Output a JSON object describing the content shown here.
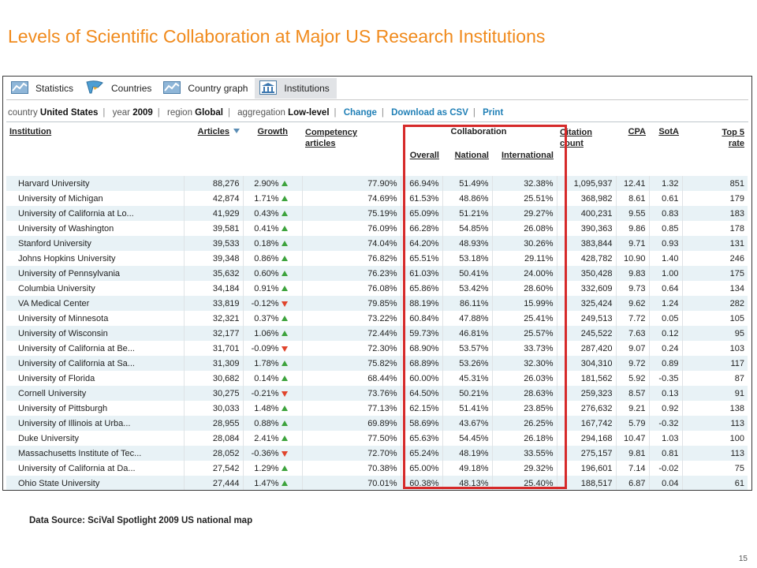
{
  "slide": {
    "title": "Levels of Scientific Collaboration at Major US Research Institutions",
    "source": "Data Source: SciVal Spotlight 2009 US national map",
    "page_number": "15"
  },
  "tabs": [
    {
      "label": "Statistics",
      "icon": "chart-icon",
      "active": false
    },
    {
      "label": "Countries",
      "icon": "flag-icon",
      "active": false
    },
    {
      "label": "Country graph",
      "icon": "chart-icon",
      "active": false
    },
    {
      "label": "Institutions",
      "icon": "institution-icon",
      "active": true
    }
  ],
  "filter": {
    "country_label": "country",
    "country_value": "United States",
    "year_label": "year",
    "year_value": "2009",
    "region_label": "region",
    "region_value": "Global",
    "aggregation_label": "aggregation",
    "aggregation_value": "Low-level",
    "change_link": "Change",
    "csv_link": "Download as CSV",
    "print_link": "Print"
  },
  "columns": {
    "institution": "Institution",
    "articles": "Articles",
    "growth": "Growth",
    "competency_1": "Competency",
    "competency_2": "articles",
    "collaboration": "Collaboration",
    "overall": "Overall",
    "national": "National",
    "international": "International",
    "citation_1": "Citation",
    "citation_2": "count",
    "cpa": "CPA",
    "sota": "SotA",
    "top5_1": "Top 5",
    "top5_2": "rate"
  },
  "colors": {
    "title": "#f08a1c",
    "highlight_box": "#d62a2a",
    "link": "#1f7fb6",
    "growth_up": "#3da33d",
    "growth_down": "#e0442c"
  },
  "rows": [
    {
      "institution": "Harvard University",
      "articles": "88,276",
      "growth": "2.90%",
      "trend": "up",
      "competency": "77.90%",
      "overall": "66.94%",
      "national": "51.49%",
      "international": "32.38%",
      "citations": "1,095,937",
      "cpa": "12.41",
      "sota": "1.32",
      "top5": "851"
    },
    {
      "institution": "University of Michigan",
      "articles": "42,874",
      "growth": "1.71%",
      "trend": "up",
      "competency": "74.69%",
      "overall": "61.53%",
      "national": "48.86%",
      "international": "25.51%",
      "citations": "368,982",
      "cpa": "8.61",
      "sota": "0.61",
      "top5": "179"
    },
    {
      "institution": "University of California at Lo...",
      "articles": "41,929",
      "growth": "0.43%",
      "trend": "up",
      "competency": "75.19%",
      "overall": "65.09%",
      "national": "51.21%",
      "international": "29.27%",
      "citations": "400,231",
      "cpa": "9.55",
      "sota": "0.83",
      "top5": "183"
    },
    {
      "institution": "University of Washington",
      "articles": "39,581",
      "growth": "0.41%",
      "trend": "up",
      "competency": "76.09%",
      "overall": "66.28%",
      "national": "54.85%",
      "international": "26.08%",
      "citations": "390,363",
      "cpa": "9.86",
      "sota": "0.85",
      "top5": "178"
    },
    {
      "institution": "Stanford University",
      "articles": "39,533",
      "growth": "0.18%",
      "trend": "up",
      "competency": "74.04%",
      "overall": "64.20%",
      "national": "48.93%",
      "international": "30.26%",
      "citations": "383,844",
      "cpa": "9.71",
      "sota": "0.93",
      "top5": "131"
    },
    {
      "institution": "Johns Hopkins University",
      "articles": "39,348",
      "growth": "0.86%",
      "trend": "up",
      "competency": "76.82%",
      "overall": "65.51%",
      "national": "53.18%",
      "international": "29.11%",
      "citations": "428,782",
      "cpa": "10.90",
      "sota": "1.40",
      "top5": "246"
    },
    {
      "institution": "University of Pennsylvania",
      "articles": "35,632",
      "growth": "0.60%",
      "trend": "up",
      "competency": "76.23%",
      "overall": "61.03%",
      "national": "50.41%",
      "international": "24.00%",
      "citations": "350,428",
      "cpa": "9.83",
      "sota": "1.00",
      "top5": "175"
    },
    {
      "institution": "Columbia University",
      "articles": "34,184",
      "growth": "0.91%",
      "trend": "up",
      "competency": "76.08%",
      "overall": "65.86%",
      "national": "53.42%",
      "international": "28.60%",
      "citations": "332,609",
      "cpa": "9.73",
      "sota": "0.64",
      "top5": "134"
    },
    {
      "institution": "VA Medical Center",
      "articles": "33,819",
      "growth": "-0.12%",
      "trend": "down",
      "competency": "79.85%",
      "overall": "88.19%",
      "national": "86.11%",
      "international": "15.99%",
      "citations": "325,424",
      "cpa": "9.62",
      "sota": "1.24",
      "top5": "282"
    },
    {
      "institution": "University of Minnesota",
      "articles": "32,321",
      "growth": "0.37%",
      "trend": "up",
      "competency": "73.22%",
      "overall": "60.84%",
      "national": "47.88%",
      "international": "25.41%",
      "citations": "249,513",
      "cpa": "7.72",
      "sota": "0.05",
      "top5": "105"
    },
    {
      "institution": "University of Wisconsin",
      "articles": "32,177",
      "growth": "1.06%",
      "trend": "up",
      "competency": "72.44%",
      "overall": "59.73%",
      "national": "46.81%",
      "international": "25.57%",
      "citations": "245,522",
      "cpa": "7.63",
      "sota": "0.12",
      "top5": "95"
    },
    {
      "institution": "University of California at Be...",
      "articles": "31,701",
      "growth": "-0.09%",
      "trend": "down",
      "competency": "72.30%",
      "overall": "68.90%",
      "national": "53.57%",
      "international": "33.73%",
      "citations": "287,420",
      "cpa": "9.07",
      "sota": "0.24",
      "top5": "103"
    },
    {
      "institution": "University of California at Sa...",
      "articles": "31,309",
      "growth": "1.78%",
      "trend": "up",
      "competency": "75.82%",
      "overall": "68.89%",
      "national": "53.26%",
      "international": "32.30%",
      "citations": "304,310",
      "cpa": "9.72",
      "sota": "0.89",
      "top5": "117"
    },
    {
      "institution": "University of Florida",
      "articles": "30,682",
      "growth": "0.14%",
      "trend": "up",
      "competency": "68.44%",
      "overall": "60.00%",
      "national": "45.31%",
      "international": "26.03%",
      "citations": "181,562",
      "cpa": "5.92",
      "sota": "-0.35",
      "top5": "87"
    },
    {
      "institution": "Cornell University",
      "articles": "30,275",
      "growth": "-0.21%",
      "trend": "down",
      "competency": "73.76%",
      "overall": "64.50%",
      "national": "50.21%",
      "international": "28.63%",
      "citations": "259,323",
      "cpa": "8.57",
      "sota": "0.13",
      "top5": "91"
    },
    {
      "institution": "University of Pittsburgh",
      "articles": "30,033",
      "growth": "1.48%",
      "trend": "up",
      "competency": "77.13%",
      "overall": "62.15%",
      "national": "51.41%",
      "international": "23.85%",
      "citations": "276,632",
      "cpa": "9.21",
      "sota": "0.92",
      "top5": "138"
    },
    {
      "institution": "University of Illinois at Urba...",
      "articles": "28,955",
      "growth": "0.88%",
      "trend": "up",
      "competency": "69.89%",
      "overall": "58.69%",
      "national": "43.67%",
      "international": "26.25%",
      "citations": "167,742",
      "cpa": "5.79",
      "sota": "-0.32",
      "top5": "113"
    },
    {
      "institution": "Duke University",
      "articles": "28,084",
      "growth": "2.41%",
      "trend": "up",
      "competency": "77.50%",
      "overall": "65.63%",
      "national": "54.45%",
      "international": "26.18%",
      "citations": "294,168",
      "cpa": "10.47",
      "sota": "1.03",
      "top5": "100"
    },
    {
      "institution": "Massachusetts Institute of Tec...",
      "articles": "28,052",
      "growth": "-0.36%",
      "trend": "down",
      "competency": "72.70%",
      "overall": "65.24%",
      "national": "48.19%",
      "international": "33.55%",
      "citations": "275,157",
      "cpa": "9.81",
      "sota": "0.81",
      "top5": "113"
    },
    {
      "institution": "University of California at Da...",
      "articles": "27,542",
      "growth": "1.29%",
      "trend": "up",
      "competency": "70.38%",
      "overall": "65.00%",
      "national": "49.18%",
      "international": "29.32%",
      "citations": "196,601",
      "cpa": "7.14",
      "sota": "-0.02",
      "top5": "75"
    },
    {
      "institution": "Ohio State University",
      "articles": "27,444",
      "growth": "1.47%",
      "trend": "up",
      "competency": "70.01%",
      "overall": "60.38%",
      "national": "48.13%",
      "international": "25.40%",
      "citations": "188,517",
      "cpa": "6.87",
      "sota": "0.04",
      "top5": "61"
    }
  ]
}
